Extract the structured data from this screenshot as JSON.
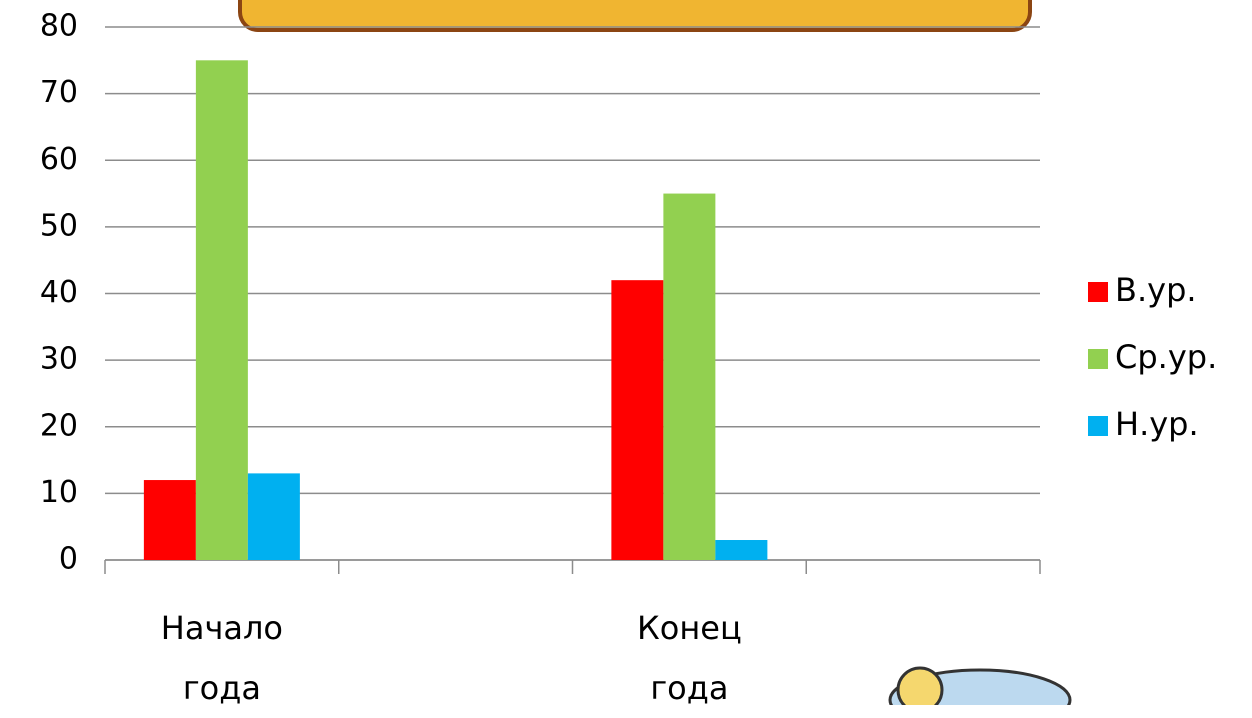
{
  "chart_data": {
    "type": "bar",
    "categories": [
      "Начало года",
      null,
      "Конец года",
      null
    ],
    "series": [
      {
        "name": "В.ур.",
        "color": "#ff0000",
        "values": [
          12,
          null,
          42,
          null
        ]
      },
      {
        "name": "Ср.ур.",
        "color": "#92d050",
        "values": [
          75,
          null,
          55,
          null
        ]
      },
      {
        "name": "Н.ур.",
        "color": "#00b0f0",
        "values": [
          13,
          null,
          3,
          null
        ]
      }
    ],
    "ylim": [
      0,
      80
    ],
    "yticks": [
      0,
      10,
      20,
      30,
      40,
      50,
      60,
      70,
      80
    ],
    "grid": true,
    "legend": "right"
  }
}
